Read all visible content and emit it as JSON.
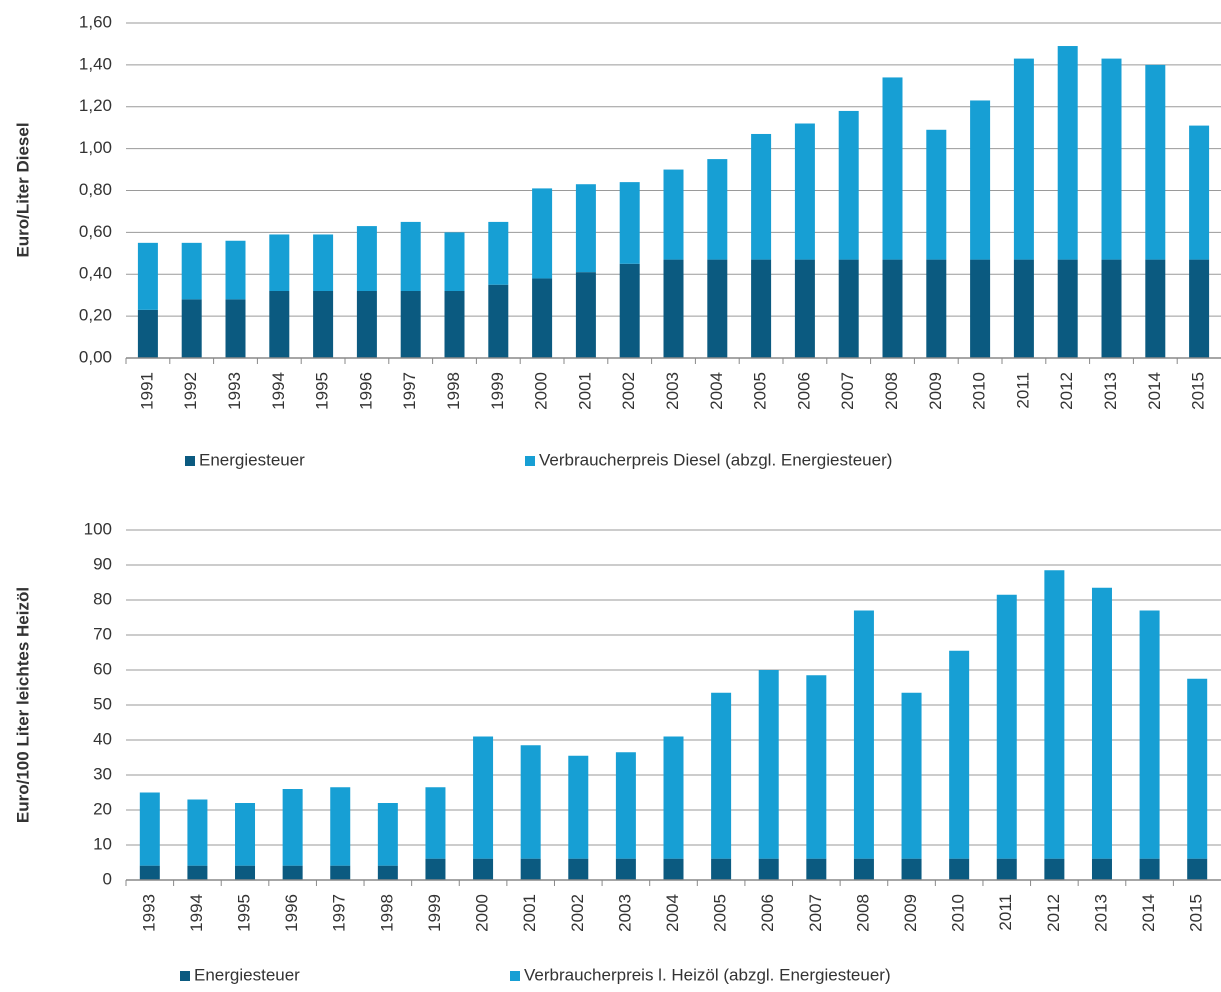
{
  "chart_data": [
    {
      "type": "bar",
      "stacked": true,
      "y_label": "Euro/Liter Diesel",
      "categories": [
        "1991",
        "1992",
        "1993",
        "1994",
        "1995",
        "1996",
        "1997",
        "1998",
        "1999",
        "2000",
        "2001",
        "2002",
        "2003",
        "2004",
        "2005",
        "2006",
        "2007",
        "2008",
        "2009",
        "2010",
        "2011",
        "2012",
        "2013",
        "2014",
        "2015"
      ],
      "series": [
        {
          "name": "Energiesteuer",
          "color": "#0b5a80",
          "values": [
            0.23,
            0.28,
            0.28,
            0.32,
            0.32,
            0.32,
            0.32,
            0.32,
            0.35,
            0.38,
            0.41,
            0.45,
            0.47,
            0.47,
            0.47,
            0.47,
            0.47,
            0.47,
            0.47,
            0.47,
            0.47,
            0.47,
            0.47,
            0.47,
            0.47
          ]
        },
        {
          "name": "Verbraucherpreis Diesel (abzgl. Energiesteuer)",
          "color": "#179fd4",
          "values": [
            0.32,
            0.27,
            0.28,
            0.27,
            0.27,
            0.31,
            0.33,
            0.28,
            0.3,
            0.43,
            0.42,
            0.39,
            0.43,
            0.48,
            0.6,
            0.65,
            0.71,
            0.87,
            0.62,
            0.76,
            0.96,
            1.02,
            0.96,
            0.93,
            0.64
          ]
        }
      ],
      "ylim": [
        0,
        1.6
      ],
      "yticks": [
        {
          "value": 0,
          "label": "0,00"
        },
        {
          "value": 0.2,
          "label": "0,20"
        },
        {
          "value": 0.4,
          "label": "0,40"
        },
        {
          "value": 0.6,
          "label": "0,60"
        },
        {
          "value": 0.8,
          "label": "0,80"
        },
        {
          "value": 1.0,
          "label": "1,00"
        },
        {
          "value": 1.2,
          "label": "1,20"
        },
        {
          "value": 1.4,
          "label": "1,40"
        },
        {
          "value": 1.6,
          "label": "1,60"
        }
      ],
      "grid": true,
      "legend": "bottom"
    },
    {
      "type": "bar",
      "stacked": true,
      "y_label": "Euro/100  Liter leichtes Heizöl",
      "categories": [
        "1993",
        "1994",
        "1995",
        "1996",
        "1997",
        "1998",
        "1999",
        "2000",
        "2001",
        "2002",
        "2003",
        "2004",
        "2005",
        "2006",
        "2007",
        "2008",
        "2009",
        "2010",
        "2011",
        "2012",
        "2013",
        "2014",
        "2015"
      ],
      "series": [
        {
          "name": "Energiesteuer",
          "color": "#0b5a80",
          "values": [
            4.1,
            4.1,
            4.1,
            4.1,
            4.1,
            4.1,
            6.1,
            6.1,
            6.1,
            6.1,
            6.1,
            6.1,
            6.1,
            6.1,
            6.1,
            6.1,
            6.1,
            6.1,
            6.1,
            6.1,
            6.1,
            6.1,
            6.1
          ]
        },
        {
          "name": "Verbraucherpreis l. Heizöl (abzgl. Energiesteuer)",
          "color": "#179fd4",
          "values": [
            20.9,
            18.9,
            17.9,
            21.9,
            22.4,
            17.9,
            20.4,
            34.9,
            32.4,
            29.4,
            30.4,
            34.9,
            47.4,
            53.9,
            52.4,
            70.9,
            47.4,
            59.4,
            75.4,
            82.4,
            77.4,
            70.9,
            51.4
          ]
        }
      ],
      "ylim": [
        0,
        100
      ],
      "yticks": [
        0,
        10,
        20,
        30,
        40,
        50,
        60,
        70,
        80,
        90,
        100
      ],
      "grid": true,
      "legend": "bottom"
    }
  ]
}
